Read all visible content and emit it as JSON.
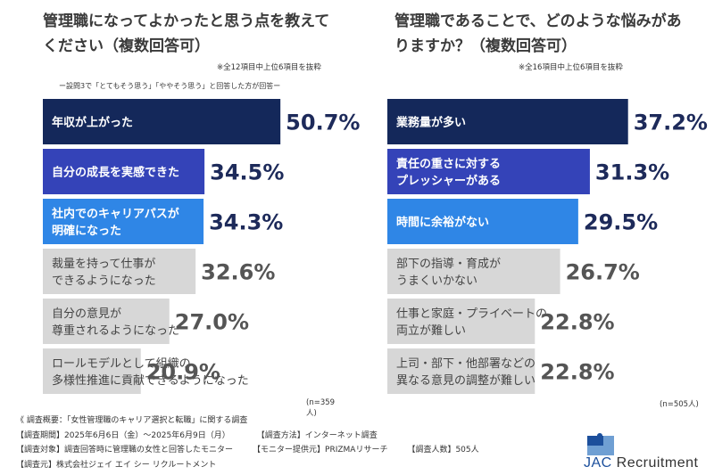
{
  "colors": {
    "navy": "#14285a",
    "blue": "#3443b8",
    "light_blue": "#2f86e6",
    "gray": "#d7d7d7",
    "label_white": "#ffffff",
    "label_dark": "#444444",
    "value_navy": "#1d2a5a",
    "value_gray": "#555555",
    "logo_blue": "#1c4f9c"
  },
  "chart_data": [
    {
      "type": "bar",
      "orientation": "horizontal",
      "title": "管理職になってよかったと思う点を教えてください（複数回答可）",
      "note": "※全12項目中上位6項目を抜粋",
      "sub_note": "ー設問3で「とてもそう思う」「ややそう思う」と回答した方が回答ー",
      "sample_size": "(n=359人)",
      "categories": [
        [
          "年収が上がった"
        ],
        [
          "自分の成長を実感できた"
        ],
        [
          "社内でのキャリアパスが",
          "明確になった"
        ],
        [
          "裁量を持って仕事が",
          "できるようになった"
        ],
        [
          "自分の意見が",
          "尊重されるようになった"
        ],
        [
          "ロールモデルとして組織の",
          "多様性推進に貢献できるようになった"
        ]
      ],
      "values": [
        50.7,
        34.5,
        34.3,
        32.6,
        27.0,
        20.9
      ],
      "value_labels": [
        "50.7%",
        "34.5%",
        "34.3%",
        "32.6%",
        "27.0%",
        "20.9%"
      ],
      "bar_colors": [
        "navy",
        "blue",
        "light_blue",
        "gray",
        "gray",
        "gray"
      ]
    },
    {
      "type": "bar",
      "orientation": "horizontal",
      "title": "管理職であることで、どのような悩みがありますか？（複数回答可）",
      "note": "※全16項目中上位6項目を抜粋",
      "sample_size": "(n=505人)",
      "categories": [
        [
          "業務量が多い"
        ],
        [
          "責任の重さに対する",
          "プレッシャーがある"
        ],
        [
          "時間に余裕がない"
        ],
        [
          "部下の指導・育成が",
          "うまくいかない"
        ],
        [
          "仕事と家庭・プライベートの",
          "両立が難しい"
        ],
        [
          "上司・部下・他部署などの",
          "異なる意見の調整が難しい"
        ]
      ],
      "values": [
        37.2,
        31.3,
        29.5,
        26.7,
        22.8,
        22.8
      ],
      "value_labels": [
        "37.2%",
        "31.3%",
        "29.5%",
        "26.7%",
        "22.8%",
        "22.8%"
      ],
      "bar_colors": [
        "navy",
        "blue",
        "light_blue",
        "gray",
        "gray",
        "gray"
      ]
    }
  ],
  "footer": {
    "overview": "《 調査概要：「女性管理職のキャリア選択と転職」に関する調査",
    "period": "【調査期間】2025年6月6日（金）〜2025年6月9日（月）",
    "method": "【調査方法】インターネット調査",
    "target": "【調査対象】調査回答時に管理職の女性と回答したモニター",
    "provider": "【モニター提供元】PRIZMAリサーチ",
    "count": "【調査人数】505人",
    "organizer": "【調査元】株式会社ジェイ エイ シー リクルートメント"
  },
  "logo": {
    "jac": "JAC",
    "recruitment": " Recruitment"
  }
}
